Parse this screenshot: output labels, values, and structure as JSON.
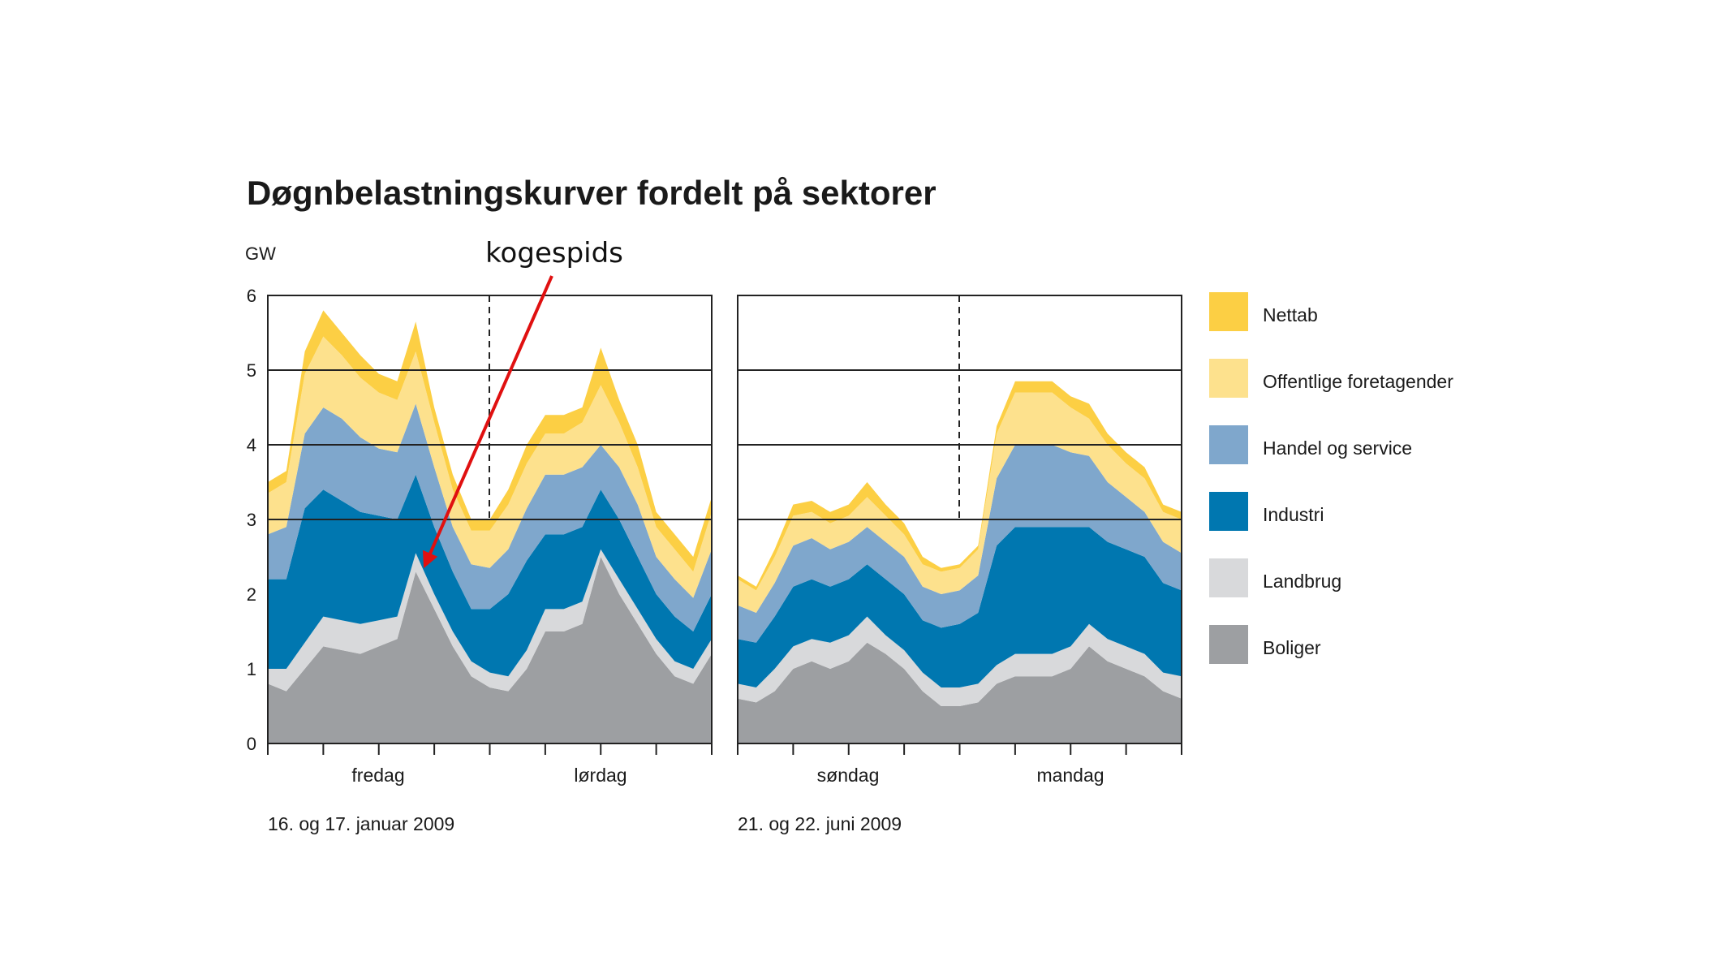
{
  "chart_data": {
    "type": "area",
    "stacked": true,
    "title": "Døgnbelastningskurver fordelt på sektorer",
    "ylabel": "GW",
    "ylim": [
      0,
      6
    ],
    "yticks": [
      "0",
      "1",
      "2",
      "3",
      "4",
      "5",
      "6"
    ],
    "grid_lines_y": [
      3,
      4,
      5
    ],
    "legend_position": "right",
    "annotation": {
      "text": "kogespids",
      "points_to_panel": 0,
      "points_to_hour": 8.5,
      "points_to_gw": 2.3
    },
    "series_meta": [
      {
        "key": "boliger",
        "name": "Boliger",
        "color": "#9d9fa2"
      },
      {
        "key": "landbrug",
        "name": "Landbrug",
        "color": "#d8d9db"
      },
      {
        "key": "industri",
        "name": "Industri",
        "color": "#0077b0"
      },
      {
        "key": "handel",
        "name": "Handel og service",
        "color": "#7fa7cc"
      },
      {
        "key": "offentlige",
        "name": "Offentlige foretagender",
        "color": "#fde18d"
      },
      {
        "key": "nettab",
        "name": "Nettab",
        "color": "#fccf44"
      }
    ],
    "panels": [
      {
        "day_labels": [
          "fredag",
          "lørdag"
        ],
        "date_label": "16. og 17. januar 2009",
        "x_hours": [
          0,
          1,
          2,
          3,
          4,
          5,
          6,
          7,
          8,
          9,
          10,
          11,
          12,
          13,
          14,
          15,
          16,
          17,
          18,
          19,
          20,
          21,
          22,
          23,
          24
        ],
        "series": {
          "boliger": [
            0.8,
            0.7,
            1.0,
            1.3,
            1.25,
            1.2,
            1.3,
            1.4,
            2.3,
            1.8,
            1.3,
            0.9,
            0.75,
            0.7,
            1.0,
            1.5,
            1.5,
            1.6,
            2.5,
            2.0,
            1.6,
            1.2,
            0.9,
            0.8,
            1.2
          ],
          "landbrug": [
            0.2,
            0.3,
            0.35,
            0.4,
            0.4,
            0.4,
            0.35,
            0.3,
            0.25,
            0.2,
            0.2,
            0.2,
            0.2,
            0.2,
            0.25,
            0.3,
            0.3,
            0.3,
            0.1,
            0.2,
            0.2,
            0.2,
            0.2,
            0.2,
            0.2
          ],
          "industri": [
            1.2,
            1.2,
            1.8,
            1.7,
            1.6,
            1.5,
            1.4,
            1.3,
            1.05,
            0.9,
            0.8,
            0.7,
            0.85,
            1.1,
            1.2,
            1.0,
            1.0,
            1.0,
            0.8,
            0.8,
            0.7,
            0.6,
            0.6,
            0.5,
            0.6
          ],
          "handel": [
            0.6,
            0.7,
            1.0,
            1.1,
            1.1,
            1.0,
            0.9,
            0.9,
            0.95,
            0.8,
            0.6,
            0.6,
            0.55,
            0.6,
            0.7,
            0.8,
            0.8,
            0.8,
            0.6,
            0.7,
            0.7,
            0.5,
            0.5,
            0.45,
            0.6
          ],
          "offentlige": [
            0.55,
            0.6,
            0.8,
            0.95,
            0.85,
            0.8,
            0.75,
            0.7,
            0.7,
            0.6,
            0.5,
            0.45,
            0.5,
            0.6,
            0.6,
            0.55,
            0.55,
            0.6,
            0.8,
            0.6,
            0.5,
            0.4,
            0.4,
            0.35,
            0.5
          ],
          "nettab": [
            0.15,
            0.15,
            0.3,
            0.35,
            0.3,
            0.3,
            0.25,
            0.25,
            0.4,
            0.2,
            0.2,
            0.15,
            0.15,
            0.2,
            0.25,
            0.25,
            0.25,
            0.2,
            0.5,
            0.3,
            0.3,
            0.2,
            0.2,
            0.2,
            0.2
          ]
        }
      },
      {
        "day_labels": [
          "søndag",
          "mandag"
        ],
        "date_label": "21. og 22. juni 2009",
        "x_hours": [
          0,
          1,
          2,
          3,
          4,
          5,
          6,
          7,
          8,
          9,
          10,
          11,
          12,
          13,
          14,
          15,
          16,
          17,
          18,
          19,
          20,
          21,
          22,
          23,
          24
        ],
        "series": {
          "boliger": [
            0.6,
            0.55,
            0.7,
            1.0,
            1.1,
            1.0,
            1.1,
            1.35,
            1.2,
            1.0,
            0.7,
            0.5,
            0.5,
            0.55,
            0.8,
            0.9,
            0.9,
            0.9,
            1.0,
            1.3,
            1.1,
            1.0,
            0.9,
            0.7,
            0.6
          ],
          "landbrug": [
            0.2,
            0.2,
            0.3,
            0.3,
            0.3,
            0.35,
            0.35,
            0.35,
            0.25,
            0.25,
            0.25,
            0.25,
            0.25,
            0.25,
            0.25,
            0.3,
            0.3,
            0.3,
            0.3,
            0.3,
            0.3,
            0.3,
            0.3,
            0.25,
            0.3
          ],
          "industri": [
            0.6,
            0.6,
            0.7,
            0.8,
            0.8,
            0.75,
            0.75,
            0.7,
            0.75,
            0.75,
            0.7,
            0.8,
            0.85,
            0.95,
            1.6,
            1.7,
            1.7,
            1.7,
            1.6,
            1.3,
            1.3,
            1.3,
            1.3,
            1.2,
            1.15
          ],
          "handel": [
            0.45,
            0.4,
            0.45,
            0.55,
            0.55,
            0.5,
            0.5,
            0.5,
            0.5,
            0.5,
            0.45,
            0.45,
            0.45,
            0.5,
            0.9,
            1.1,
            1.1,
            1.1,
            1.0,
            0.95,
            0.8,
            0.7,
            0.6,
            0.55,
            0.5
          ],
          "offentlige": [
            0.35,
            0.3,
            0.35,
            0.4,
            0.35,
            0.35,
            0.35,
            0.4,
            0.35,
            0.3,
            0.3,
            0.3,
            0.3,
            0.35,
            0.6,
            0.7,
            0.7,
            0.7,
            0.6,
            0.5,
            0.5,
            0.45,
            0.45,
            0.4,
            0.45
          ],
          "nettab": [
            0.05,
            0.05,
            0.1,
            0.15,
            0.15,
            0.15,
            0.15,
            0.2,
            0.15,
            0.15,
            0.1,
            0.05,
            0.05,
            0.05,
            0.1,
            0.15,
            0.15,
            0.15,
            0.15,
            0.2,
            0.15,
            0.15,
            0.15,
            0.1,
            0.1
          ]
        }
      }
    ]
  }
}
